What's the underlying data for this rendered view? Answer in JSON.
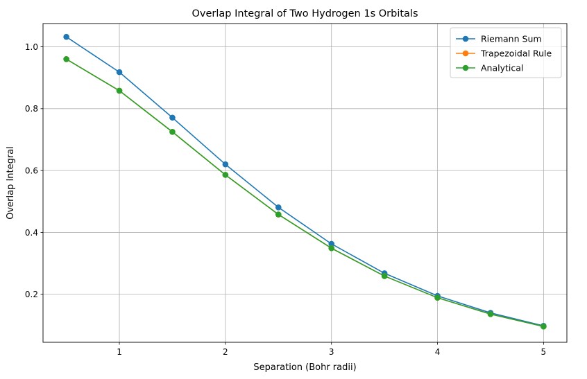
{
  "chart_data": {
    "type": "line",
    "title": "Overlap Integral of Two Hydrogen 1s Orbitals",
    "xlabel": "Separation (Bohr radii)",
    "ylabel": "Overlap Integral",
    "x": [
      0.5,
      1.0,
      1.5,
      2.0,
      2.5,
      3.0,
      3.5,
      4.0,
      4.5,
      5.0
    ],
    "xlim": [
      0.28,
      5.22
    ],
    "ylim": [
      0.045,
      1.075
    ],
    "xticks": [
      1,
      2,
      3,
      4,
      5
    ],
    "xtick_labels": [
      "1",
      "2",
      "3",
      "4",
      "5"
    ],
    "yticks": [
      0.2,
      0.4,
      0.6,
      0.8,
      1.0
    ],
    "ytick_labels": [
      "0.2",
      "0.4",
      "0.6",
      "0.8",
      "1.0"
    ],
    "grid": true,
    "legend_position": "top-right",
    "series": [
      {
        "name": "Riemann Sum",
        "color": "#1f77b4",
        "values": [
          1.032,
          0.918,
          0.771,
          0.62,
          0.481,
          0.363,
          0.268,
          0.195,
          0.14,
          0.098
        ]
      },
      {
        "name": "Trapezoidal Rule",
        "color": "#ff7f0e",
        "values": [
          0.96,
          0.858,
          0.725,
          0.586,
          0.458,
          0.349,
          0.259,
          0.189,
          0.136,
          0.096
        ]
      },
      {
        "name": "Analytical",
        "color": "#2ca02c",
        "values": [
          0.96,
          0.858,
          0.725,
          0.586,
          0.458,
          0.349,
          0.259,
          0.189,
          0.136,
          0.096
        ]
      }
    ]
  }
}
